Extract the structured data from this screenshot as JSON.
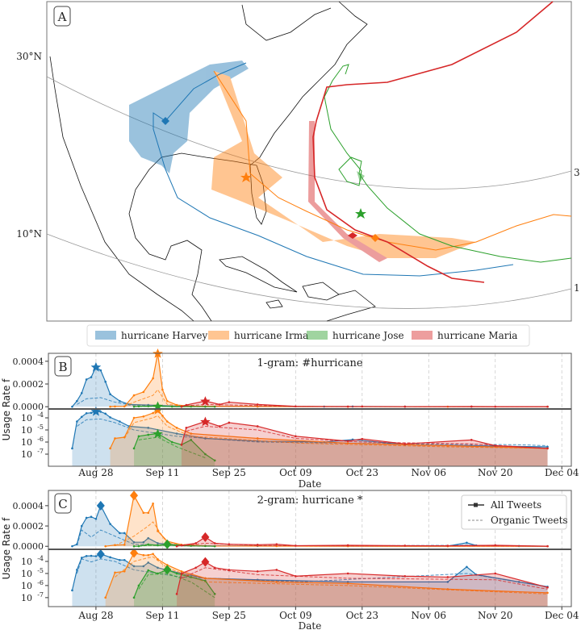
{
  "panel_a": {
    "label": "A",
    "lat_labels": [
      "30°N",
      "10°N"
    ],
    "edge_labels": [
      "3",
      "1"
    ]
  },
  "legend": [
    {
      "label": "hurricane Harvey",
      "color": "#1f77b4"
    },
    {
      "label": "hurricane Irma",
      "color": "#ff7f0e"
    },
    {
      "label": "hurricane Jose",
      "color": "#2ca02c"
    },
    {
      "label": "hurricane Maria",
      "color": "#d62728"
    }
  ],
  "chart_data": [
    {
      "type": "line",
      "panel": "B",
      "title": "1-gram: #hurricane",
      "xlabel": "Date",
      "ylabel": "Usage Rate f",
      "xlim": [
        "Aug 18",
        "Dec 06"
      ],
      "xticks": [
        "Aug 28",
        "Sep 11",
        "Sep 25",
        "Oct 09",
        "Oct 23",
        "Nov 06",
        "Nov 20",
        "Dec 04"
      ],
      "linear": {
        "ylim": [
          -2e-05,
          0.00047
        ],
        "yticks": [
          "0.0000",
          "0.0002",
          "0.0004"
        ]
      },
      "log": {
        "ylim": [
          1e-08,
          0.00054
        ],
        "yticks": [
          "1e-4",
          "1e-5",
          "1e-6",
          "1e-7"
        ]
      },
      "marker": "star",
      "grid": "x dashed",
      "series": [
        {
          "name": "hurricane Harvey",
          "color": "#1f77b4",
          "peak": "Aug 28",
          "all": [
            [
              "Aug 23",
              3e-07
            ],
            [
              "Aug 24",
              5e-05
            ],
            [
              "Aug 25",
              0.00012
            ],
            [
              "Aug 26",
              0.00024
            ],
            [
              "Aug 27",
              0.00026
            ],
            [
              "Aug 28",
              0.00035
            ],
            [
              "Aug 29",
              0.00032
            ],
            [
              "Aug 30",
              0.00022
            ],
            [
              "Aug 31",
              0.00011
            ],
            [
              "Sep 02",
              5e-05
            ],
            [
              "Sep 04",
              2e-05
            ],
            [
              "Sep 08",
              1.5e-05
            ],
            [
              "Sep 14",
              5e-06
            ],
            [
              "Sep 20",
              2e-06
            ],
            [
              "Oct 01",
              1.2e-06
            ],
            [
              "Oct 15",
              1e-06
            ],
            [
              "Oct 21",
              1.6e-06
            ],
            [
              "Nov 01",
              6e-07
            ],
            [
              "Nov 15",
              5e-07
            ],
            [
              "Dec 01",
              4e-07
            ]
          ],
          "organic": [
            [
              "Aug 24",
              2e-05
            ],
            [
              "Aug 26",
              7e-05
            ],
            [
              "Aug 29",
              8e-05
            ],
            [
              "Sep 01",
              4e-05
            ],
            [
              "Sep 05",
              1e-05
            ],
            [
              "Sep 14",
              3e-06
            ],
            [
              "Oct 01",
              1e-06
            ],
            [
              "Nov 01",
              7e-07
            ],
            [
              "Nov 25",
              6e-07
            ],
            [
              "Dec 01",
              5e-07
            ]
          ]
        },
        {
          "name": "hurricane Irma",
          "color": "#ff7f0e",
          "peak": "Sep 10",
          "all": [
            [
              "Aug 31",
              3e-07
            ],
            [
              "Sep 01",
              2e-06
            ],
            [
              "Sep 03",
              2.5e-06
            ],
            [
              "Sep 05",
              0.0001
            ],
            [
              "Sep 07",
              0.00013
            ],
            [
              "Sep 09",
              0.00025
            ],
            [
              "Sep 10",
              0.00047
            ],
            [
              "Sep 11",
              0.00015
            ],
            [
              "Sep 12",
              5e-05
            ],
            [
              "Sep 14",
              1.5e-05
            ],
            [
              "Sep 17",
              5e-06
            ],
            [
              "Oct 01",
              2e-06
            ],
            [
              "Oct 20",
              8e-07
            ],
            [
              "Nov 10",
              5e-07
            ],
            [
              "Dec 01",
              3e-07
            ]
          ],
          "organic": [
            [
              "Sep 03",
              2e-06
            ],
            [
              "Sep 05",
              4e-05
            ],
            [
              "Sep 09",
              0.0001
            ],
            [
              "Sep 10",
              0.00015
            ],
            [
              "Sep 12",
              2e-05
            ],
            [
              "Sep 17",
              3e-06
            ],
            [
              "Oct 10",
              8e-07
            ],
            [
              "Nov 10",
              4e-07
            ],
            [
              "Dec 01",
              3e-07
            ]
          ]
        },
        {
          "name": "hurricane Jose",
          "color": "#2ca02c",
          "peak": "Sep 10",
          "all": [
            [
              "Sep 05",
              3e-07
            ],
            [
              "Sep 06",
              3e-06
            ],
            [
              "Sep 08",
              4e-06
            ],
            [
              "Sep 10",
              5e-06
            ],
            [
              "Sep 13",
              1e-06
            ],
            [
              "Sep 15",
              6e-07
            ],
            [
              "Sep 17",
              1.5e-06
            ],
            [
              "Sep 20",
              1e-07
            ],
            [
              "Sep 22",
              3e-08
            ]
          ],
          "organic": [
            [
              "Sep 06",
              1.5e-06
            ],
            [
              "Sep 10",
              2.5e-06
            ],
            [
              "Sep 14",
              4e-07
            ],
            [
              "Sep 20",
              5e-08
            ]
          ]
        },
        {
          "name": "hurricane Maria",
          "color": "#d62728",
          "peak": "Sep 20",
          "all": [
            [
              "Sep 15",
              6e-07
            ],
            [
              "Sep 16",
              1.5e-05
            ],
            [
              "Sep 20",
              5e-05
            ],
            [
              "Sep 23",
              2e-05
            ],
            [
              "Sep 25",
              4e-05
            ],
            [
              "Oct 01",
              2e-05
            ],
            [
              "Oct 09",
              3e-06
            ],
            [
              "Oct 20",
              1.2e-06
            ],
            [
              "Oct 23",
              1.8e-06
            ],
            [
              "Nov 01",
              7e-07
            ],
            [
              "Nov 15",
              1.5e-06
            ],
            [
              "Nov 20",
              5e-07
            ],
            [
              "Dec 01",
              3e-07
            ]
          ],
          "organic": [
            [
              "Sep 16",
              8e-06
            ],
            [
              "Sep 20",
              2e-05
            ],
            [
              "Oct 01",
              1e-05
            ],
            [
              "Oct 09",
              2e-06
            ],
            [
              "Oct 23",
              1e-06
            ],
            [
              "Nov 15",
              7e-07
            ],
            [
              "Dec 01",
              3e-07
            ]
          ]
        }
      ]
    },
    {
      "type": "line",
      "panel": "C",
      "title": "2-gram: hurricane *",
      "xlabel": "Date",
      "ylabel": "Usage Rate f",
      "xlim": [
        "Aug 18",
        "Dec 06"
      ],
      "xticks": [
        "Aug 28",
        "Sep 11",
        "Sep 25",
        "Oct 09",
        "Oct 23",
        "Nov 06",
        "Nov 20",
        "Dec 04"
      ],
      "linear": {
        "ylim": [
          -3e-05,
          0.00055
        ],
        "yticks": [
          "0.0000",
          "0.0002",
          "0.0004"
        ]
      },
      "log": {
        "ylim": [
          1.8e-08,
          0.001
        ],
        "yticks": [
          "1e-4",
          "1e-5",
          "1e-6",
          "1e-7"
        ]
      },
      "marker": "diamond",
      "grid": "x dashed",
      "legend": [
        "All Tweets",
        "Organic Tweets"
      ],
      "series": [
        {
          "name": "hurricane Harvey",
          "color": "#1f77b4",
          "peak": "Aug 29",
          "all": [
            [
              "Aug 23",
              4e-07
            ],
            [
              "Aug 24",
              2e-05
            ],
            [
              "Aug 25",
              0.0002
            ],
            [
              "Aug 26",
              0.00028
            ],
            [
              "Aug 27",
              0.00029
            ],
            [
              "Aug 28",
              0.00027
            ],
            [
              "Aug 29",
              0.0004
            ],
            [
              "Aug 31",
              0.00022
            ],
            [
              "Sep 02",
              0.00013
            ],
            [
              "Sep 03",
              0.00013
            ],
            [
              "Sep 05",
              4e-05
            ],
            [
              "Sep 07",
              4e-05
            ],
            [
              "Sep 08",
              8e-05
            ],
            [
              "Sep 10",
              3e-05
            ],
            [
              "Sep 15",
              1e-05
            ],
            [
              "Sep 20",
              4e-06
            ],
            [
              "Oct 01",
              3e-06
            ],
            [
              "Oct 20",
              2e-06
            ],
            [
              "Nov 10",
              2e-06
            ],
            [
              "Nov 14",
              3.5e-05
            ],
            [
              "Nov 16",
              8e-06
            ],
            [
              "Nov 25",
              2e-06
            ],
            [
              "Dec 01",
              8e-07
            ]
          ],
          "organic": [
            [
              "Aug 24",
              1e-05
            ],
            [
              "Aug 25",
              0.00016
            ],
            [
              "Aug 27",
              9e-05
            ],
            [
              "Aug 29",
              0.00016
            ],
            [
              "Sep 01",
              0.0001
            ],
            [
              "Sep 05",
              2e-05
            ],
            [
              "Sep 15",
              5e-06
            ],
            [
              "Oct 10",
              2e-06
            ],
            [
              "Nov 14",
              1e-05
            ],
            [
              "Dec 01",
              8e-07
            ]
          ]
        },
        {
          "name": "hurricane Irma",
          "color": "#ff7f0e",
          "peak": "Sep 05",
          "all": [
            [
              "Aug 30",
              1e-07
            ],
            [
              "Sep 01",
              1.2e-05
            ],
            [
              "Sep 03",
              1.5e-05
            ],
            [
              "Sep 05",
              0.0005
            ],
            [
              "Sep 07",
              0.00033
            ],
            [
              "Sep 08",
              0.00033
            ],
            [
              "Sep 09",
              0.00042
            ],
            [
              "Sep 10",
              0.00015
            ],
            [
              "Sep 12",
              5e-05
            ],
            [
              "Sep 15",
              1.5e-05
            ],
            [
              "Sep 20",
              4e-06
            ],
            [
              "Oct 05",
              2e-06
            ],
            [
              "Oct 20",
              1.5e-06
            ],
            [
              "Nov 10",
              5e-07
            ],
            [
              "Dec 01",
              2.5e-07
            ]
          ],
          "organic": [
            [
              "Sep 01",
              5e-06
            ],
            [
              "Sep 05",
              0.0001
            ],
            [
              "Sep 08",
              0.0002
            ],
            [
              "Sep 09",
              0.00024
            ],
            [
              "Sep 12",
              3e-05
            ],
            [
              "Sep 20",
              2e-06
            ],
            [
              "Oct 20",
              1e-06
            ],
            [
              "Dec 01",
              2e-07
            ]
          ]
        },
        {
          "name": "hurricane Jose",
          "color": "#2ca02c",
          "peak": "Sep 12",
          "all": [
            [
              "Sep 05",
              1e-07
            ],
            [
              "Sep 06",
              1e-06
            ],
            [
              "Sep 08",
              1.8e-05
            ],
            [
              "Sep 10",
              1e-05
            ],
            [
              "Sep 12",
              2e-05
            ],
            [
              "Sep 14",
              1e-05
            ],
            [
              "Sep 17",
              5e-06
            ],
            [
              "Sep 20",
              2.5e-06
            ],
            [
              "Sep 22",
              2e-07
            ]
          ],
          "organic": [
            [
              "Sep 06",
              5e-07
            ],
            [
              "Sep 08",
              8e-06
            ],
            [
              "Sep 12",
              1e-05
            ],
            [
              "Sep 17",
              2e-06
            ],
            [
              "Sep 22",
              1e-07
            ]
          ]
        },
        {
          "name": "hurricane Maria",
          "color": "#d62728",
          "peak": "Sep 20",
          "all": [
            [
              "Sep 14",
              2e-07
            ],
            [
              "Sep 15",
              1e-05
            ],
            [
              "Sep 18",
              3e-05
            ],
            [
              "Sep 20",
              9e-05
            ],
            [
              "Sep 22",
              3e-05
            ],
            [
              "Sep 25",
              2e-05
            ],
            [
              "Oct 01",
              1.5e-05
            ],
            [
              "Oct 05",
              2e-05
            ],
            [
              "Oct 09",
              6e-06
            ],
            [
              "Oct 20",
              1e-05
            ],
            [
              "Nov 01",
              6e-06
            ],
            [
              "Nov 10",
              5e-06
            ],
            [
              "Nov 20",
              1e-05
            ],
            [
              "Dec 01",
              7e-07
            ]
          ],
          "organic": [
            [
              "Sep 15",
              4e-06
            ],
            [
              "Sep 20",
              3e-05
            ],
            [
              "Oct 01",
              8e-06
            ],
            [
              "Oct 20",
              4e-06
            ],
            [
              "Nov 20",
              3e-06
            ],
            [
              "Dec 01",
              5e-07
            ]
          ]
        }
      ]
    }
  ]
}
